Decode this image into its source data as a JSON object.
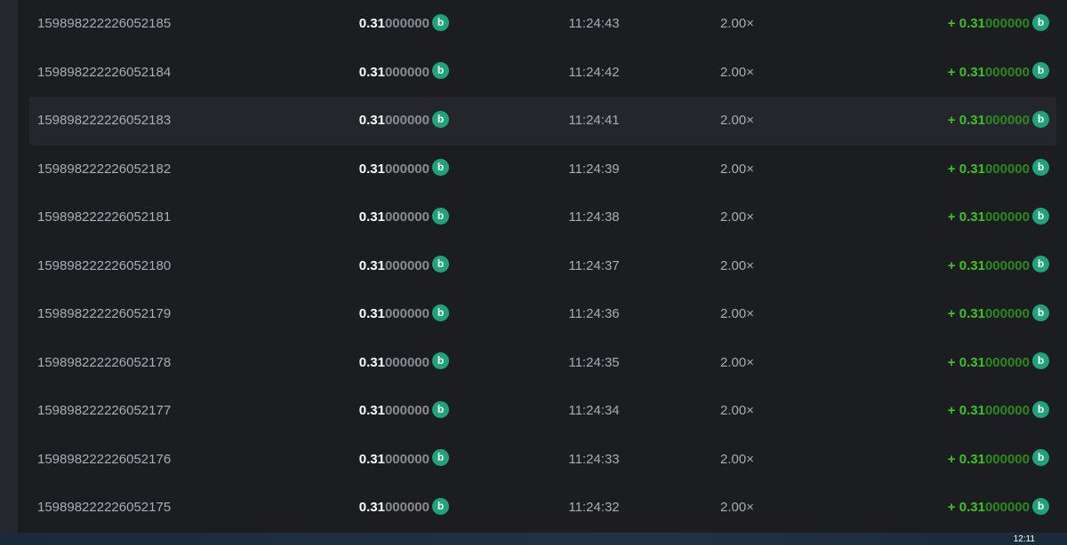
{
  "currency_icon": "bcd-coin-icon",
  "colors": {
    "background": "#1c1d21",
    "profit": "#3cc323",
    "coin": "#1fa37a"
  },
  "rows": [
    {
      "id": "159898222226052185",
      "amount_bold": "0.31",
      "amount_dim": "000000",
      "time": "11:24:43",
      "multiplier": "2.00×",
      "payout_prefix": "+ ",
      "payout_bold": "0.31",
      "payout_dim": "000000"
    },
    {
      "id": "159898222226052184",
      "amount_bold": "0.31",
      "amount_dim": "000000",
      "time": "11:24:42",
      "multiplier": "2.00×",
      "payout_prefix": "+ ",
      "payout_bold": "0.31",
      "payout_dim": "000000"
    },
    {
      "id": "159898222226052183",
      "amount_bold": "0.31",
      "amount_dim": "000000",
      "time": "11:24:41",
      "multiplier": "2.00×",
      "payout_prefix": "+ ",
      "payout_bold": "0.31",
      "payout_dim": "000000"
    },
    {
      "id": "159898222226052182",
      "amount_bold": "0.31",
      "amount_dim": "000000",
      "time": "11:24:39",
      "multiplier": "2.00×",
      "payout_prefix": "+ ",
      "payout_bold": "0.31",
      "payout_dim": "000000"
    },
    {
      "id": "159898222226052181",
      "amount_bold": "0.31",
      "amount_dim": "000000",
      "time": "11:24:38",
      "multiplier": "2.00×",
      "payout_prefix": "+ ",
      "payout_bold": "0.31",
      "payout_dim": "000000"
    },
    {
      "id": "159898222226052180",
      "amount_bold": "0.31",
      "amount_dim": "000000",
      "time": "11:24:37",
      "multiplier": "2.00×",
      "payout_prefix": "+ ",
      "payout_bold": "0.31",
      "payout_dim": "000000"
    },
    {
      "id": "159898222226052179",
      "amount_bold": "0.31",
      "amount_dim": "000000",
      "time": "11:24:36",
      "multiplier": "2.00×",
      "payout_prefix": "+ ",
      "payout_bold": "0.31",
      "payout_dim": "000000"
    },
    {
      "id": "159898222226052178",
      "amount_bold": "0.31",
      "amount_dim": "000000",
      "time": "11:24:35",
      "multiplier": "2.00×",
      "payout_prefix": "+ ",
      "payout_bold": "0.31",
      "payout_dim": "000000"
    },
    {
      "id": "159898222226052177",
      "amount_bold": "0.31",
      "amount_dim": "000000",
      "time": "11:24:34",
      "multiplier": "2.00×",
      "payout_prefix": "+ ",
      "payout_bold": "0.31",
      "payout_dim": "000000"
    },
    {
      "id": "159898222226052176",
      "amount_bold": "0.31",
      "amount_dim": "000000",
      "time": "11:24:33",
      "multiplier": "2.00×",
      "payout_prefix": "+ ",
      "payout_bold": "0.31",
      "payout_dim": "000000"
    },
    {
      "id": "159898222226052175",
      "amount_bold": "0.31",
      "amount_dim": "000000",
      "time": "11:24:32",
      "multiplier": "2.00×",
      "payout_prefix": "+ ",
      "payout_bold": "0.31",
      "payout_dim": "000000"
    }
  ],
  "highlighted_row": 2,
  "taskbar": {
    "clock": "12:11"
  }
}
